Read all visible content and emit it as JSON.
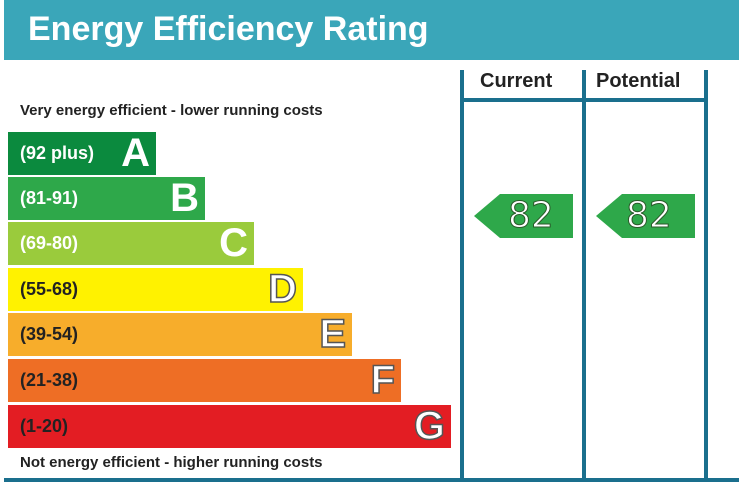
{
  "title": "Energy Efficiency Rating",
  "caption_top": "Very energy efficient - lower running costs",
  "caption_bottom": "Not energy efficient - higher running costs",
  "columns": {
    "current": "Current",
    "potential": "Potential"
  },
  "bands": [
    {
      "range": "(92 plus)",
      "letter": "A",
      "color": "#0b8a3e",
      "text_color": "#ffffff"
    },
    {
      "range": "(81-91)",
      "letter": "B",
      "color": "#2ea84a",
      "text_color": "#ffffff"
    },
    {
      "range": "(69-80)",
      "letter": "C",
      "color": "#9acb3c",
      "text_color": "#ffffff"
    },
    {
      "range": "(55-68)",
      "letter": "D",
      "color": "#fff200",
      "text_color": "#222222"
    },
    {
      "range": "(39-54)",
      "letter": "E",
      "color": "#f7ad2b",
      "text_color": "#222222"
    },
    {
      "range": "(21-38)",
      "letter": "F",
      "color": "#ee6e25",
      "text_color": "#222222"
    },
    {
      "range": "(1-20)",
      "letter": "G",
      "color": "#e31d23",
      "text_color": "#222222"
    }
  ],
  "ratings": {
    "current": "82",
    "potential": "82",
    "color": "#2ea84a"
  }
}
